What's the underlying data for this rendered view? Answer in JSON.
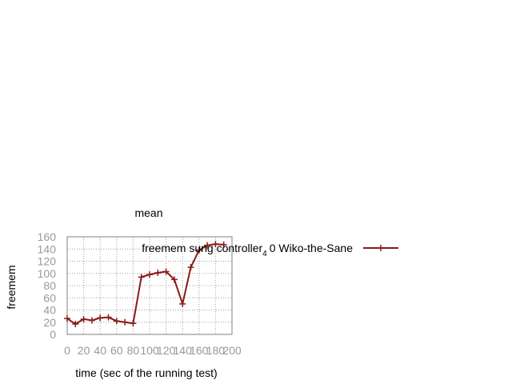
{
  "chart_data": {
    "type": "line",
    "title": "mean",
    "xlabel": "time (sec of the running test)",
    "ylabel": "freemem",
    "xlim": [
      0,
      200
    ],
    "ylim": [
      0,
      160
    ],
    "xticks": [
      "0",
      "20",
      "40",
      "60",
      "80",
      "100",
      "120",
      "140",
      "160",
      "180",
      "200"
    ],
    "yticks": [
      "0",
      "20",
      "40",
      "60",
      "80",
      "100",
      "120",
      "140",
      "160"
    ],
    "grid": true,
    "legend_position": "top-right",
    "colors": {
      "series": "#8b1a1a",
      "grid": "#a0a0a0",
      "tick_text": "#999999"
    },
    "series": [
      {
        "name": "freemem sung controller 4 0 Wiko-the-Sane",
        "name_parts": {
          "main": "freemem sung controller",
          "subscript": "4",
          "rest": "0 Wiko-the-Sane"
        },
        "x": [
          0,
          10,
          20,
          30,
          40,
          50,
          60,
          70,
          80,
          90,
          100,
          110,
          120,
          130,
          140,
          150,
          160,
          170,
          180,
          190
        ],
        "values": [
          26,
          17,
          25,
          23,
          27,
          28,
          22,
          20,
          18,
          94,
          98,
          101,
          103,
          90,
          50,
          110,
          138,
          146,
          148,
          147
        ]
      }
    ]
  }
}
